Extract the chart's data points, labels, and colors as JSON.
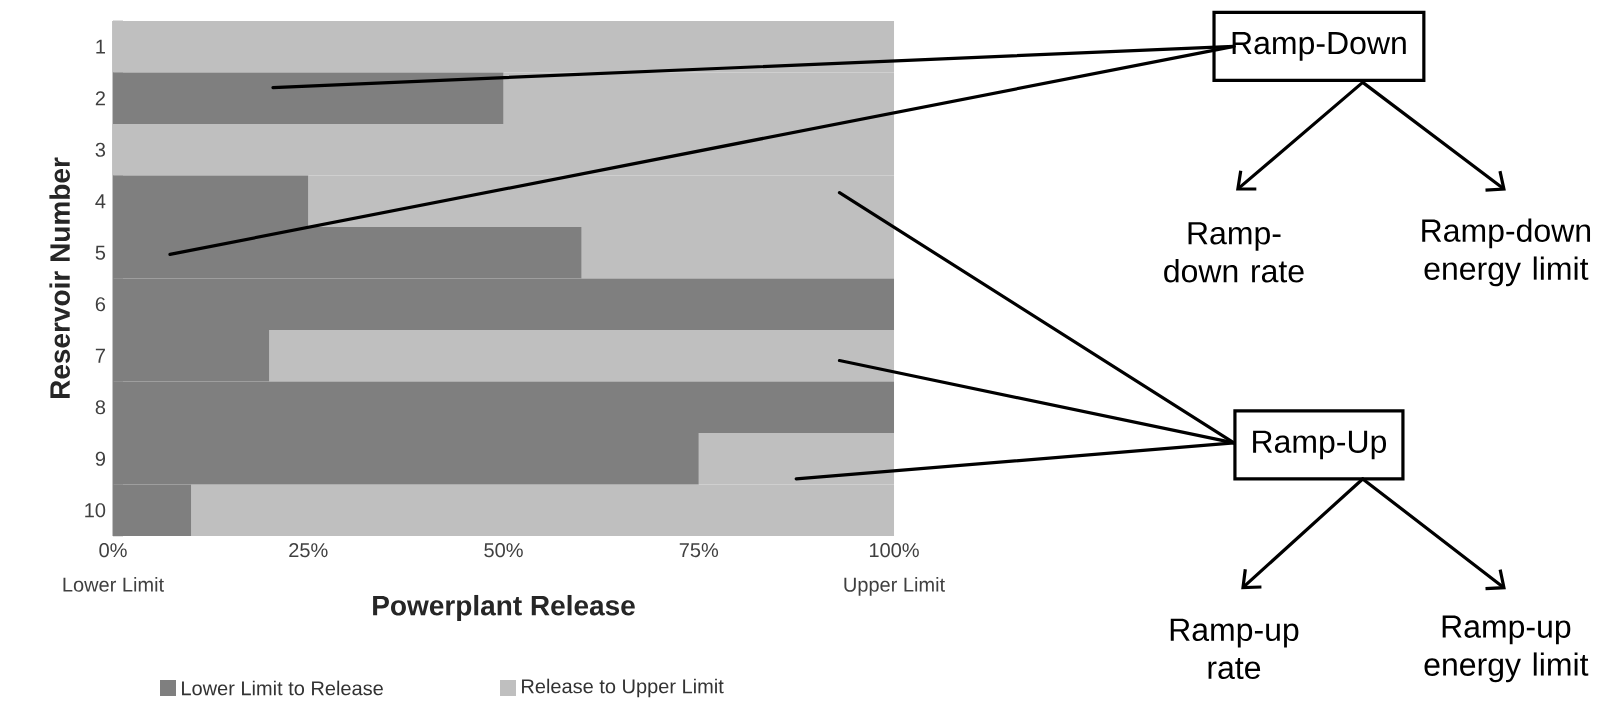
{
  "chart_data": {
    "type": "bar",
    "orientation": "horizontal",
    "stacked": true,
    "xlabel": "Powerplant Release",
    "ylabel": "Reservoir Number",
    "categories": [
      "1",
      "2",
      "3",
      "4",
      "5",
      "6",
      "7",
      "8",
      "9",
      "10"
    ],
    "series": [
      {
        "name": "Lower Limit to Release",
        "color": "#7f7f7f",
        "values": [
          0,
          50,
          0,
          25,
          60,
          100,
          20,
          100,
          75,
          10
        ]
      },
      {
        "name": "Release to Upper Limit",
        "color": "#bfbfbf",
        "values": [
          100,
          50,
          100,
          75,
          40,
          0,
          80,
          0,
          25,
          90
        ]
      }
    ],
    "xlim": [
      0,
      100
    ],
    "xticks": [
      {
        "value": 0,
        "label": "0%"
      },
      {
        "value": 25,
        "label": "25%"
      },
      {
        "value": 50,
        "label": "50%"
      },
      {
        "value": 75,
        "label": "75%"
      },
      {
        "value": 100,
        "label": "100%"
      }
    ],
    "legend": "bottom",
    "annotations": [
      "Lower Limit",
      "Upper Limit",
      "Ramp-Down",
      "Ramp-down rate",
      "Ramp-down energy limit",
      "Ramp-Up",
      "Ramp-up rate",
      "Ramp-up energy limit"
    ]
  }
}
